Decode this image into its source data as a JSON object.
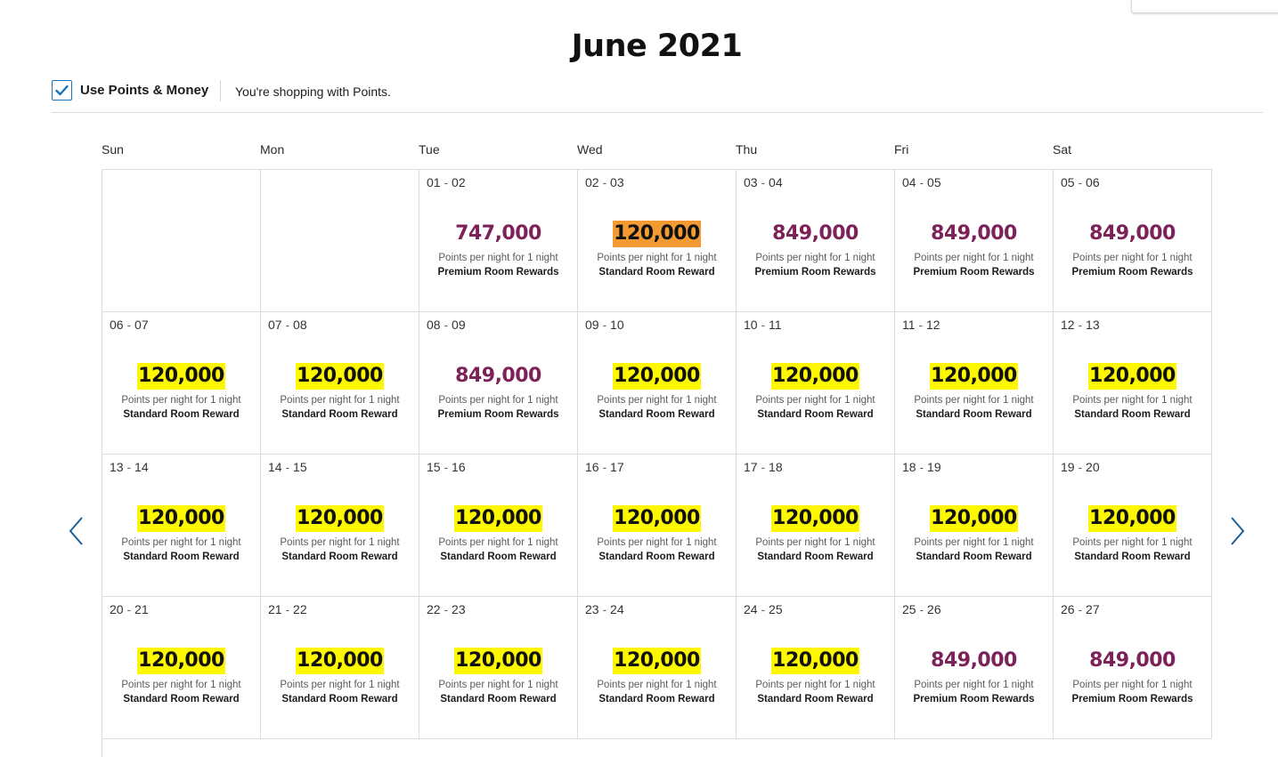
{
  "month_title": "June 2021",
  "toolbar": {
    "checkbox_checked": true,
    "toggle_label": "Use Points & Money",
    "shopping_note": "You're shopping with Points."
  },
  "weekdays": [
    "Sun",
    "Mon",
    "Tue",
    "Wed",
    "Thu",
    "Fri",
    "Sat"
  ],
  "labels": {
    "per_night": "Points per night for 1 night",
    "standard": "Standard Room Reward",
    "premium": "Premium Room Rewards"
  },
  "colors": {
    "standard_highlight": "#fdf700",
    "selected_highlight": "#f39b32",
    "premium_text": "#7d2159",
    "accent": "#1a73b8"
  },
  "icons": {
    "prev": "chevron-left-icon",
    "next": "chevron-right-icon",
    "check": "check-icon"
  },
  "weeks": [
    [
      null,
      null,
      {
        "start": "01",
        "end": "02",
        "points": "747,000",
        "kind": "premium"
      },
      {
        "start": "02",
        "end": "03",
        "points": "120,000",
        "kind": "selected"
      },
      {
        "start": "03",
        "end": "04",
        "points": "849,000",
        "kind": "premium"
      },
      {
        "start": "04",
        "end": "05",
        "points": "849,000",
        "kind": "premium"
      },
      {
        "start": "05",
        "end": "06",
        "points": "849,000",
        "kind": "premium"
      }
    ],
    [
      {
        "start": "06",
        "end": "07",
        "points": "120,000",
        "kind": "standard"
      },
      {
        "start": "07",
        "end": "08",
        "points": "120,000",
        "kind": "standard"
      },
      {
        "start": "08",
        "end": "09",
        "points": "849,000",
        "kind": "premium"
      },
      {
        "start": "09",
        "end": "10",
        "points": "120,000",
        "kind": "standard"
      },
      {
        "start": "10",
        "end": "11",
        "points": "120,000",
        "kind": "standard"
      },
      {
        "start": "11",
        "end": "12",
        "points": "120,000",
        "kind": "standard"
      },
      {
        "start": "12",
        "end": "13",
        "points": "120,000",
        "kind": "standard"
      }
    ],
    [
      {
        "start": "13",
        "end": "14",
        "points": "120,000",
        "kind": "standard"
      },
      {
        "start": "14",
        "end": "15",
        "points": "120,000",
        "kind": "standard"
      },
      {
        "start": "15",
        "end": "16",
        "points": "120,000",
        "kind": "standard"
      },
      {
        "start": "16",
        "end": "17",
        "points": "120,000",
        "kind": "standard"
      },
      {
        "start": "17",
        "end": "18",
        "points": "120,000",
        "kind": "standard"
      },
      {
        "start": "18",
        "end": "19",
        "points": "120,000",
        "kind": "standard"
      },
      {
        "start": "19",
        "end": "20",
        "points": "120,000",
        "kind": "standard"
      }
    ],
    [
      {
        "start": "20",
        "end": "21",
        "points": "120,000",
        "kind": "standard"
      },
      {
        "start": "21",
        "end": "22",
        "points": "120,000",
        "kind": "standard"
      },
      {
        "start": "22",
        "end": "23",
        "points": "120,000",
        "kind": "standard"
      },
      {
        "start": "23",
        "end": "24",
        "points": "120,000",
        "kind": "standard"
      },
      {
        "start": "24",
        "end": "25",
        "points": "120,000",
        "kind": "standard"
      },
      {
        "start": "25",
        "end": "26",
        "points": "849,000",
        "kind": "premium"
      },
      {
        "start": "26",
        "end": "27",
        "points": "849,000",
        "kind": "premium"
      }
    ]
  ]
}
